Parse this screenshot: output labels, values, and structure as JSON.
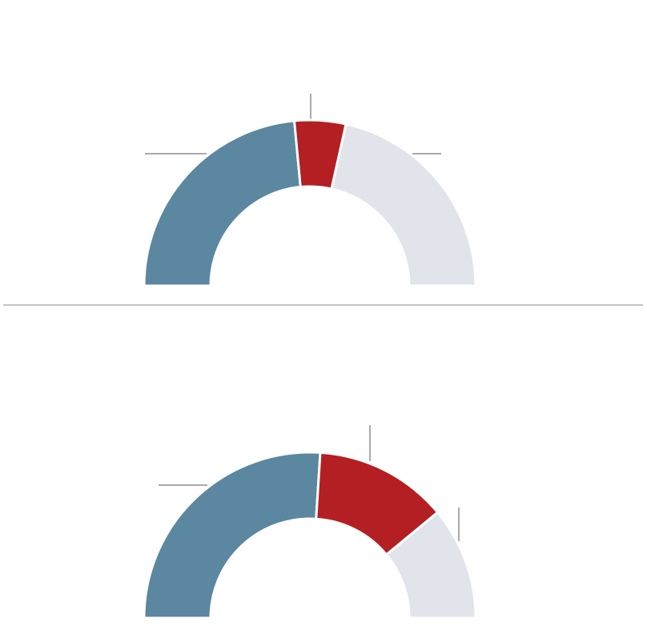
{
  "chart_data": [
    {
      "type": "semi-donut",
      "values": [
        47,
        10,
        43
      ],
      "colors": [
        "#5b87a0",
        "#b31f22",
        "#e1e4eb"
      ]
    },
    {
      "type": "semi-donut",
      "values": [
        52,
        26,
        22
      ],
      "colors": [
        "#5b87a0",
        "#b31f22",
        "#e1e4eb"
      ]
    }
  ]
}
